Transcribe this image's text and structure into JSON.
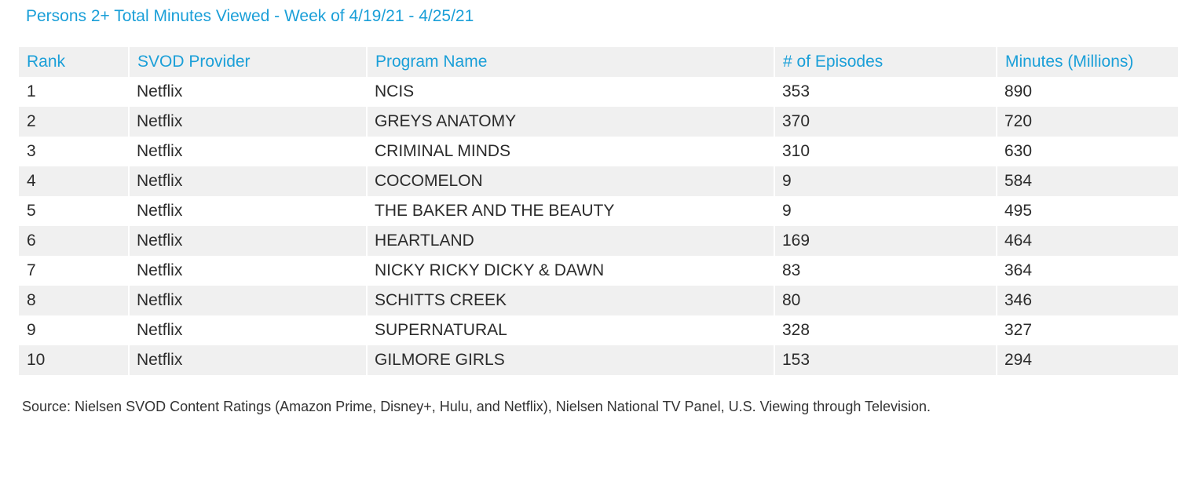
{
  "colors": {
    "accent": "#1a9fd8",
    "stripe": "#f0f0f0",
    "text": "#2b2b2b"
  },
  "chart_data": {
    "type": "table",
    "title": "Persons 2+ Total Minutes Viewed - Week of 4/19/21 - 4/25/21",
    "columns": [
      "Rank",
      "SVOD Provider",
      "Program Name",
      "# of Episodes",
      "Minutes (Millions)"
    ],
    "rows": [
      [
        "1",
        "Netflix",
        "NCIS",
        "353",
        "890"
      ],
      [
        "2",
        "Netflix",
        "GREYS ANATOMY",
        "370",
        "720"
      ],
      [
        "3",
        "Netflix",
        "CRIMINAL MINDS",
        "310",
        "630"
      ],
      [
        "4",
        "Netflix",
        "COCOMELON",
        "9",
        "584"
      ],
      [
        "5",
        "Netflix",
        "THE BAKER AND THE BEAUTY",
        "9",
        "495"
      ],
      [
        "6",
        "Netflix",
        "HEARTLAND",
        "169",
        "464"
      ],
      [
        "7",
        "Netflix",
        "NICKY RICKY DICKY & DAWN",
        "83",
        "364"
      ],
      [
        "8",
        "Netflix",
        "SCHITTS CREEK",
        "80",
        "346"
      ],
      [
        "9",
        "Netflix",
        "SUPERNATURAL",
        "328",
        "327"
      ],
      [
        "10",
        "Netflix",
        "GILMORE GIRLS",
        "153",
        "294"
      ]
    ],
    "source": "Source: Nielsen SVOD Content Ratings (Amazon Prime, Disney+, Hulu, and Netflix), Nielsen National TV Panel, U.S. Viewing through Television."
  }
}
